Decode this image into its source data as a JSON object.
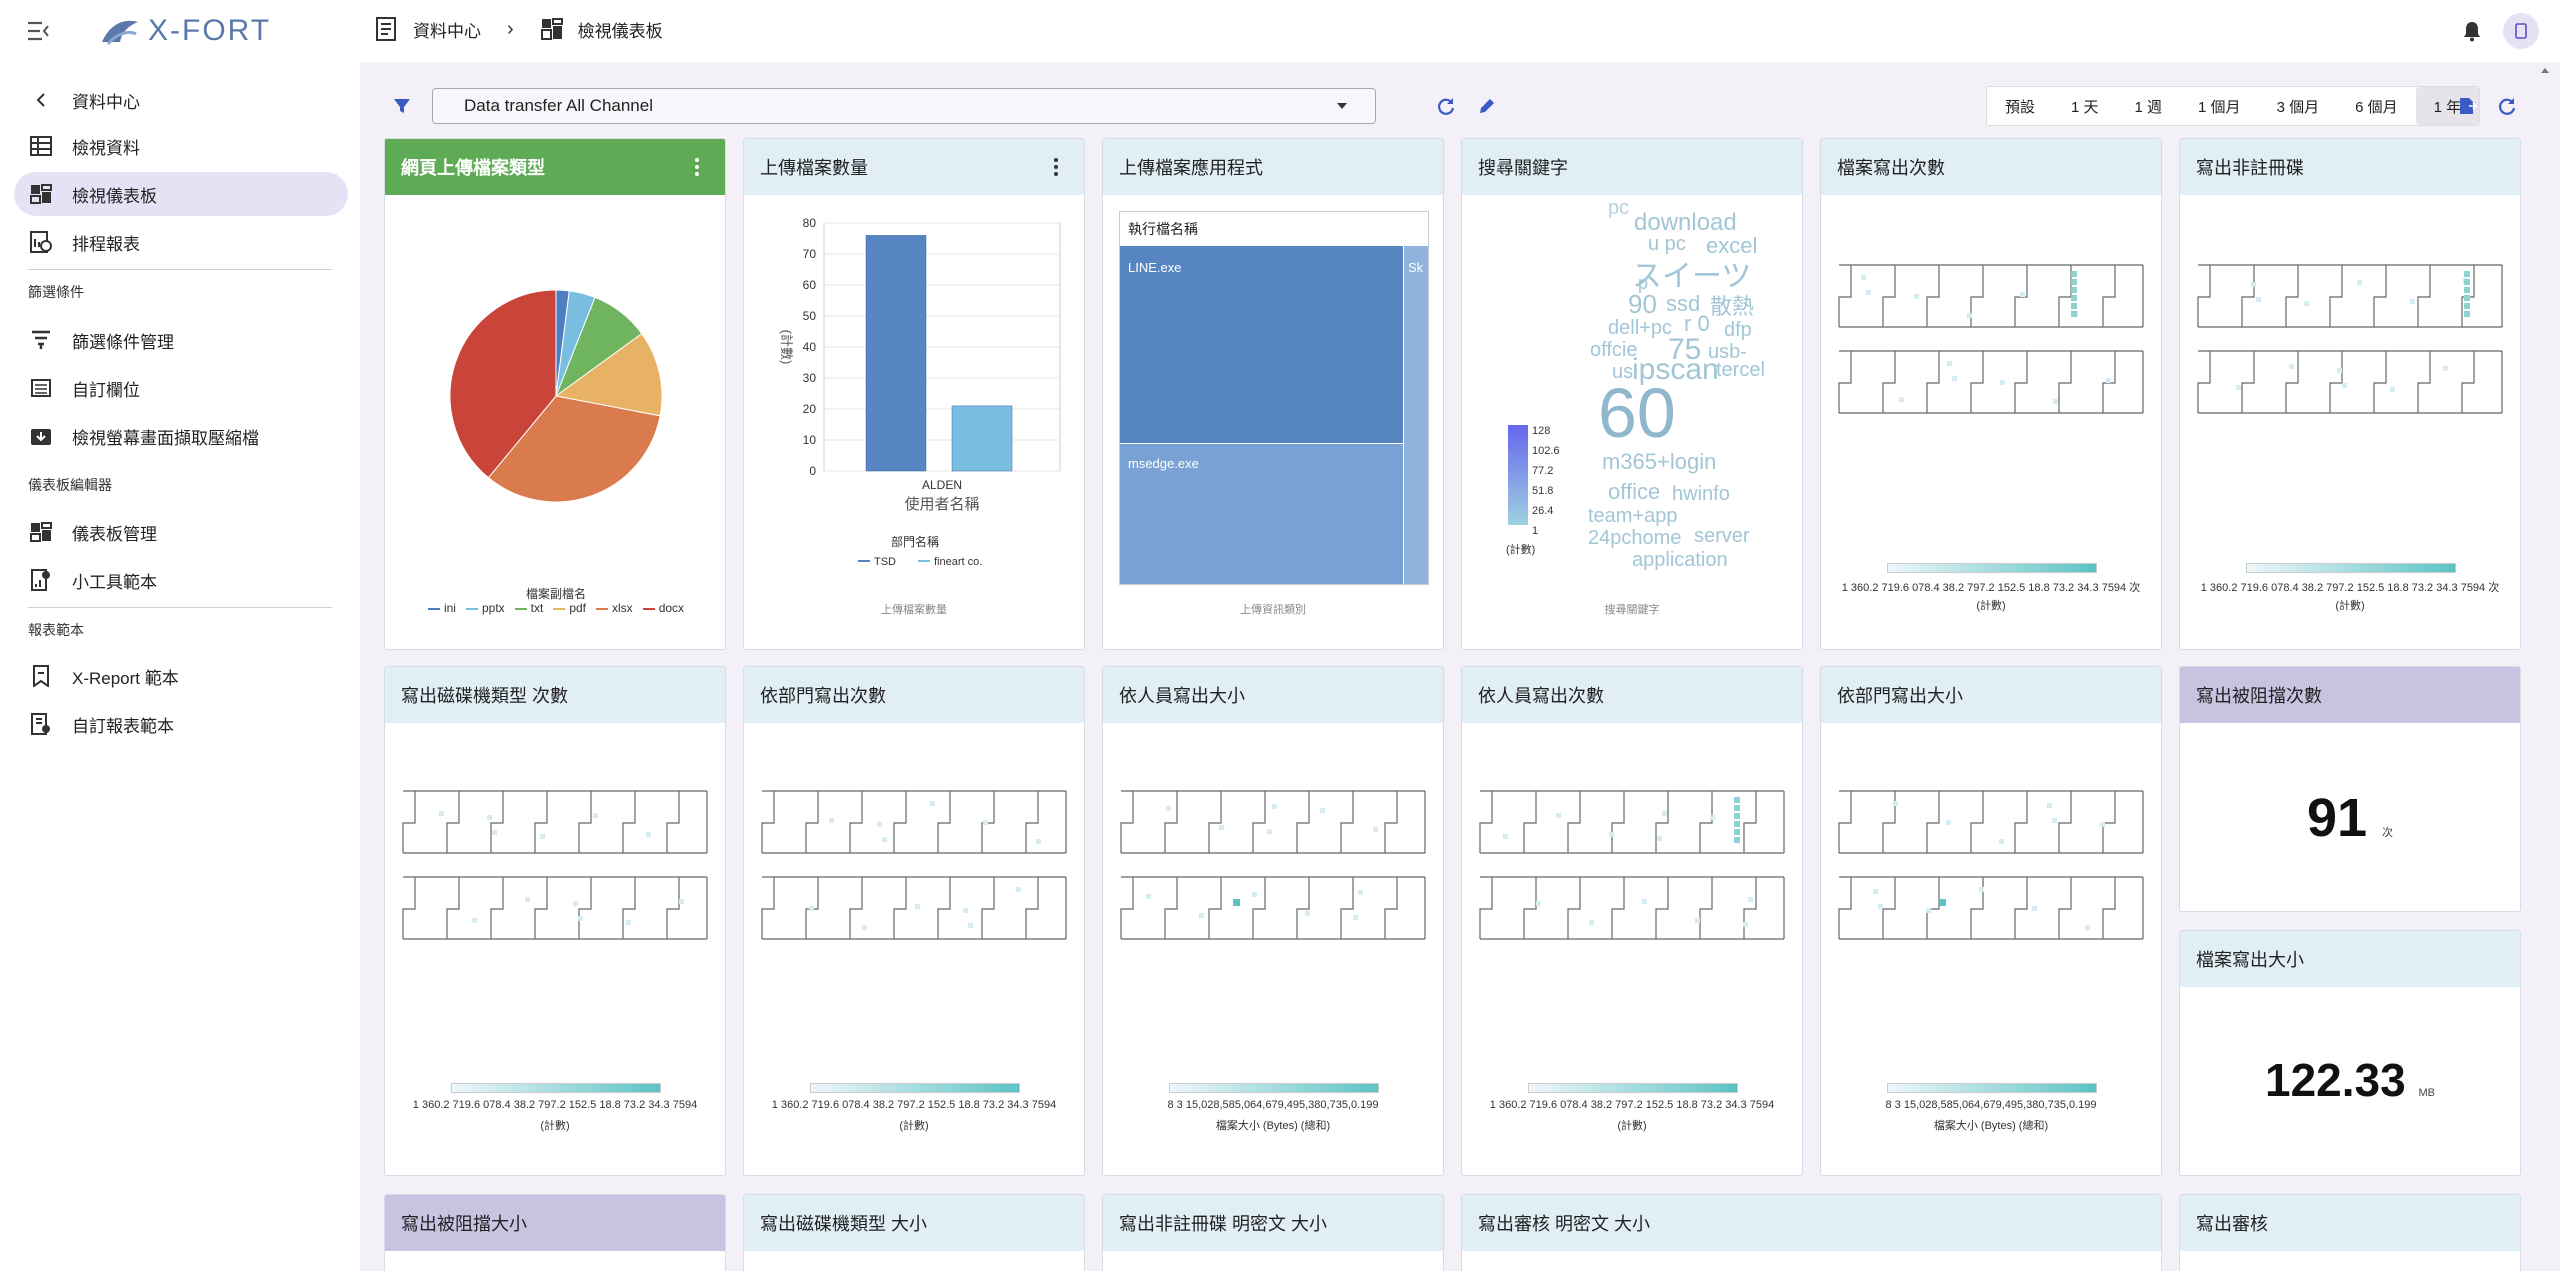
{
  "app": {
    "title": "X-FORT"
  },
  "breadcrumb": {
    "parent": "資料中心",
    "current": "檢視儀表板"
  },
  "sidebar": {
    "back": "資料中心",
    "items": [
      {
        "label": "檢視資料",
        "icon": "table-icon"
      },
      {
        "label": "檢視儀表板",
        "icon": "dashboard-icon"
      },
      {
        "label": "排程報表",
        "icon": "schedule-report-icon"
      }
    ],
    "section1": "篩選條件",
    "items2": [
      {
        "label": "篩選條件管理",
        "icon": "filter-icon"
      },
      {
        "label": "自訂欄位",
        "icon": "columns-icon"
      },
      {
        "label": "檢視螢幕畫面擷取壓縮檔",
        "icon": "download-archive-icon"
      }
    ],
    "section2": "儀表板編輯器",
    "items3": [
      {
        "label": "儀表板管理",
        "icon": "dashboard-manage-icon"
      },
      {
        "label": "小工具範本",
        "icon": "widget-template-icon"
      }
    ],
    "section3": "報表範本",
    "items4": [
      {
        "label": "X-Report 範本",
        "icon": "report-icon"
      },
      {
        "label": "自訂報表範本",
        "icon": "custom-report-icon"
      }
    ]
  },
  "toolbar": {
    "dashboard_select": "Data transfer All Channel",
    "ranges": [
      "預設",
      "1 天",
      "1 週",
      "1 個月",
      "3 個月",
      "6 個月",
      "1 年"
    ],
    "active_range": "1 年"
  },
  "cards": {
    "c1": {
      "title": "網頁上傳檔案類型",
      "legend_title": "檔案副檔名",
      "legend": [
        "ini",
        "pptx",
        "txt",
        "pdf",
        "xlsx",
        "docx"
      ]
    },
    "c2": {
      "title": "上傳檔案數量",
      "footer": "上傳檔案數量",
      "xlabel": "使用者名稱",
      "ylabel": "(計數)",
      "legend_title": "部門名稱",
      "legend": [
        "TSD",
        "fineart co."
      ]
    },
    "c3": {
      "title": "上傳檔案應用程式",
      "header": "執行檔名稱",
      "apps": [
        "LINE.exe",
        "msedge.exe",
        "Sk"
      ],
      "footer": "上傳資訊類別"
    },
    "c4": {
      "title": "搜尋關鍵字",
      "footer": "搜尋關鍵字",
      "scale": [
        "128",
        "102.6",
        "77.2",
        "51.8",
        "26.4",
        "1"
      ],
      "scale_label": "(計數)",
      "words": [
        "pc",
        "download",
        "u pc",
        "excel",
        "スイーツ",
        "p",
        "90",
        "ssd",
        "散熱",
        "dell+pc",
        "r 0",
        "dfp",
        "offcie",
        "75",
        "usb-",
        "us",
        "ipscan",
        "tercel",
        "60",
        "m365+login",
        "office",
        "hwinfo",
        "team+app",
        "24pchome",
        "server",
        "application"
      ]
    },
    "c5": {
      "title": "檔案寫出次數",
      "ticks": "1 360.2 719.6 078.4 38.2 797.2 152.5 18.8 73.2 34.3 7594 次",
      "label": "(計數)"
    },
    "c6": {
      "title": "寫出非註冊碟",
      "ticks": "1 360.2 719.6 078.4 38.2 797.2 152.5 18.8 73.2 34.3 7594 次",
      "label": "(計數)"
    },
    "c7": {
      "title": "寫出磁碟機類型 次數",
      "ticks": "1 360.2 719.6 078.4 38.2 797.2 152.5 18.8 73.2 34.3 7594",
      "label": "(計數)"
    },
    "c8": {
      "title": "依部門寫出次數",
      "ticks": "1 360.2 719.6 078.4 38.2 797.2 152.5 18.8 73.2 34.3 7594",
      "label": "(計數)"
    },
    "c9": {
      "title": "依人員寫出大小",
      "ticks": "8 3 15,028,585,064,679,495,380,735,0.199",
      "label": "檔案大小 (Bytes) (總和)"
    },
    "c10": {
      "title": "依人員寫出次數",
      "ticks": "1 360.2 719.6 078.4 38.2 797.2 152.5 18.8 73.2 34.3 7594",
      "label": "(計數)"
    },
    "c11": {
      "title": "依部門寫出大小",
      "ticks": "8 3 15,028,585,064,679,495,380,735,0.199",
      "label": "檔案大小 (Bytes) (總和)"
    },
    "c12": {
      "title": "寫出被阻擋次數",
      "value": "91",
      "unit": "次"
    },
    "c13": {
      "title": "檔案寫出大小",
      "value": "122.33",
      "unit": "MB"
    },
    "r3": [
      "寫出被阻擋大小",
      "寫出磁碟機類型 大小",
      "寫出非註冊碟 明密文 大小",
      "寫出審核 明密文 大小",
      "寫出審核"
    ]
  },
  "chart_data": [
    {
      "type": "pie",
      "title": "網頁上傳檔案類型",
      "legend_title": "檔案副檔名",
      "categories": [
        "ini",
        "pptx",
        "txt",
        "pdf",
        "xlsx",
        "docx"
      ],
      "values": [
        2,
        4,
        9,
        13,
        33,
        39
      ],
      "colors": [
        "#4f7ec0",
        "#79bde0",
        "#6fb560",
        "#e8b264",
        "#d97b4c",
        "#c9453a"
      ]
    },
    {
      "type": "bar",
      "title": "上傳檔案數量",
      "xlabel": "使用者名稱",
      "ylabel": "(計數)",
      "categories": [
        "ALDEN"
      ],
      "ylim": [
        0,
        80
      ],
      "yticks": [
        0,
        10,
        20,
        30,
        40,
        50,
        60,
        70,
        80
      ],
      "series": [
        {
          "name": "TSD",
          "values": [
            76
          ],
          "color": "#5685c2"
        },
        {
          "name": "fineart co.",
          "values": [
            21
          ],
          "color": "#79bde0"
        }
      ]
    }
  ]
}
